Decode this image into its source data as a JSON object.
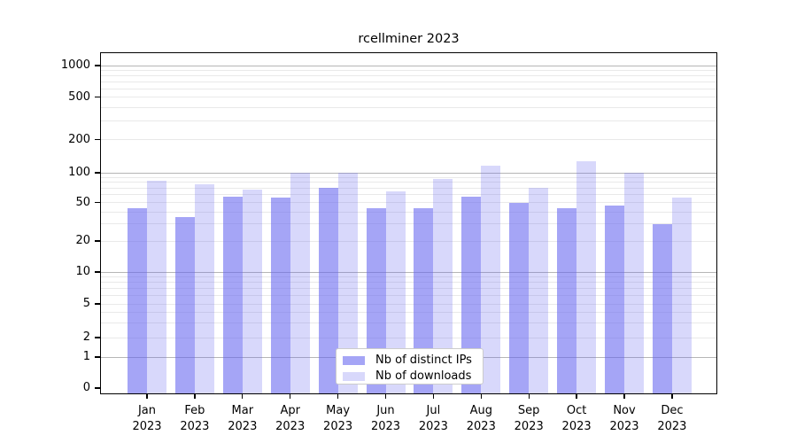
{
  "title": "rcellminer 2023",
  "y_axis": {
    "tick_labels": [
      "1000",
      "500",
      "200",
      "100",
      "50",
      "20",
      "10",
      "5",
      "2",
      "1",
      "0"
    ]
  },
  "x_axis": {
    "months": [
      "Jan",
      "Feb",
      "Mar",
      "Apr",
      "May",
      "Jun",
      "Jul",
      "Aug",
      "Sep",
      "Oct",
      "Nov",
      "Dec"
    ],
    "year": "2023"
  },
  "legend": {
    "items": [
      {
        "label": "Nb of distinct IPs"
      },
      {
        "label": "Nb of downloads"
      }
    ]
  },
  "colors": {
    "bar_distinct_ips_hex": "#a5a5f6",
    "bar_downloads_hex": "#d8d8fb",
    "bar_distinct_ips_rgba": "rgba(100,100,240,0.58)",
    "bar_downloads_rgba": "rgba(100,100,240,0.25)",
    "major_gridline": "#b6b6b6",
    "minor_gridline": "#e9e9e9"
  },
  "chart_data": {
    "type": "bar",
    "title": "rcellminer 2023",
    "categories": [
      "Jan 2023",
      "Feb 2023",
      "Mar 2023",
      "Apr 2023",
      "May 2023",
      "Jun 2023",
      "Jul 2023",
      "Aug 2023",
      "Sep 2023",
      "Oct 2023",
      "Nov 2023",
      "Dec 2023"
    ],
    "series": [
      {
        "name": "Nb of distinct IPs",
        "color": "#a5a5f6",
        "values": [
          44,
          35,
          57,
          56,
          71,
          44,
          44,
          57,
          49,
          44,
          46,
          30
        ]
      },
      {
        "name": "Nb of downloads",
        "color": "#d8d8fb",
        "values": [
          83,
          77,
          67,
          100,
          100,
          65,
          86,
          116,
          71,
          126,
          100,
          56
        ]
      }
    ],
    "yticks": [
      0,
      1,
      2,
      5,
      10,
      20,
      50,
      100,
      200,
      500,
      1000
    ],
    "ylim": [
      0,
      1000
    ],
    "yscale": "log-like",
    "xlabel": "",
    "ylabel": "",
    "grid": "horizontal major and minor",
    "legend_position": "lower center"
  }
}
